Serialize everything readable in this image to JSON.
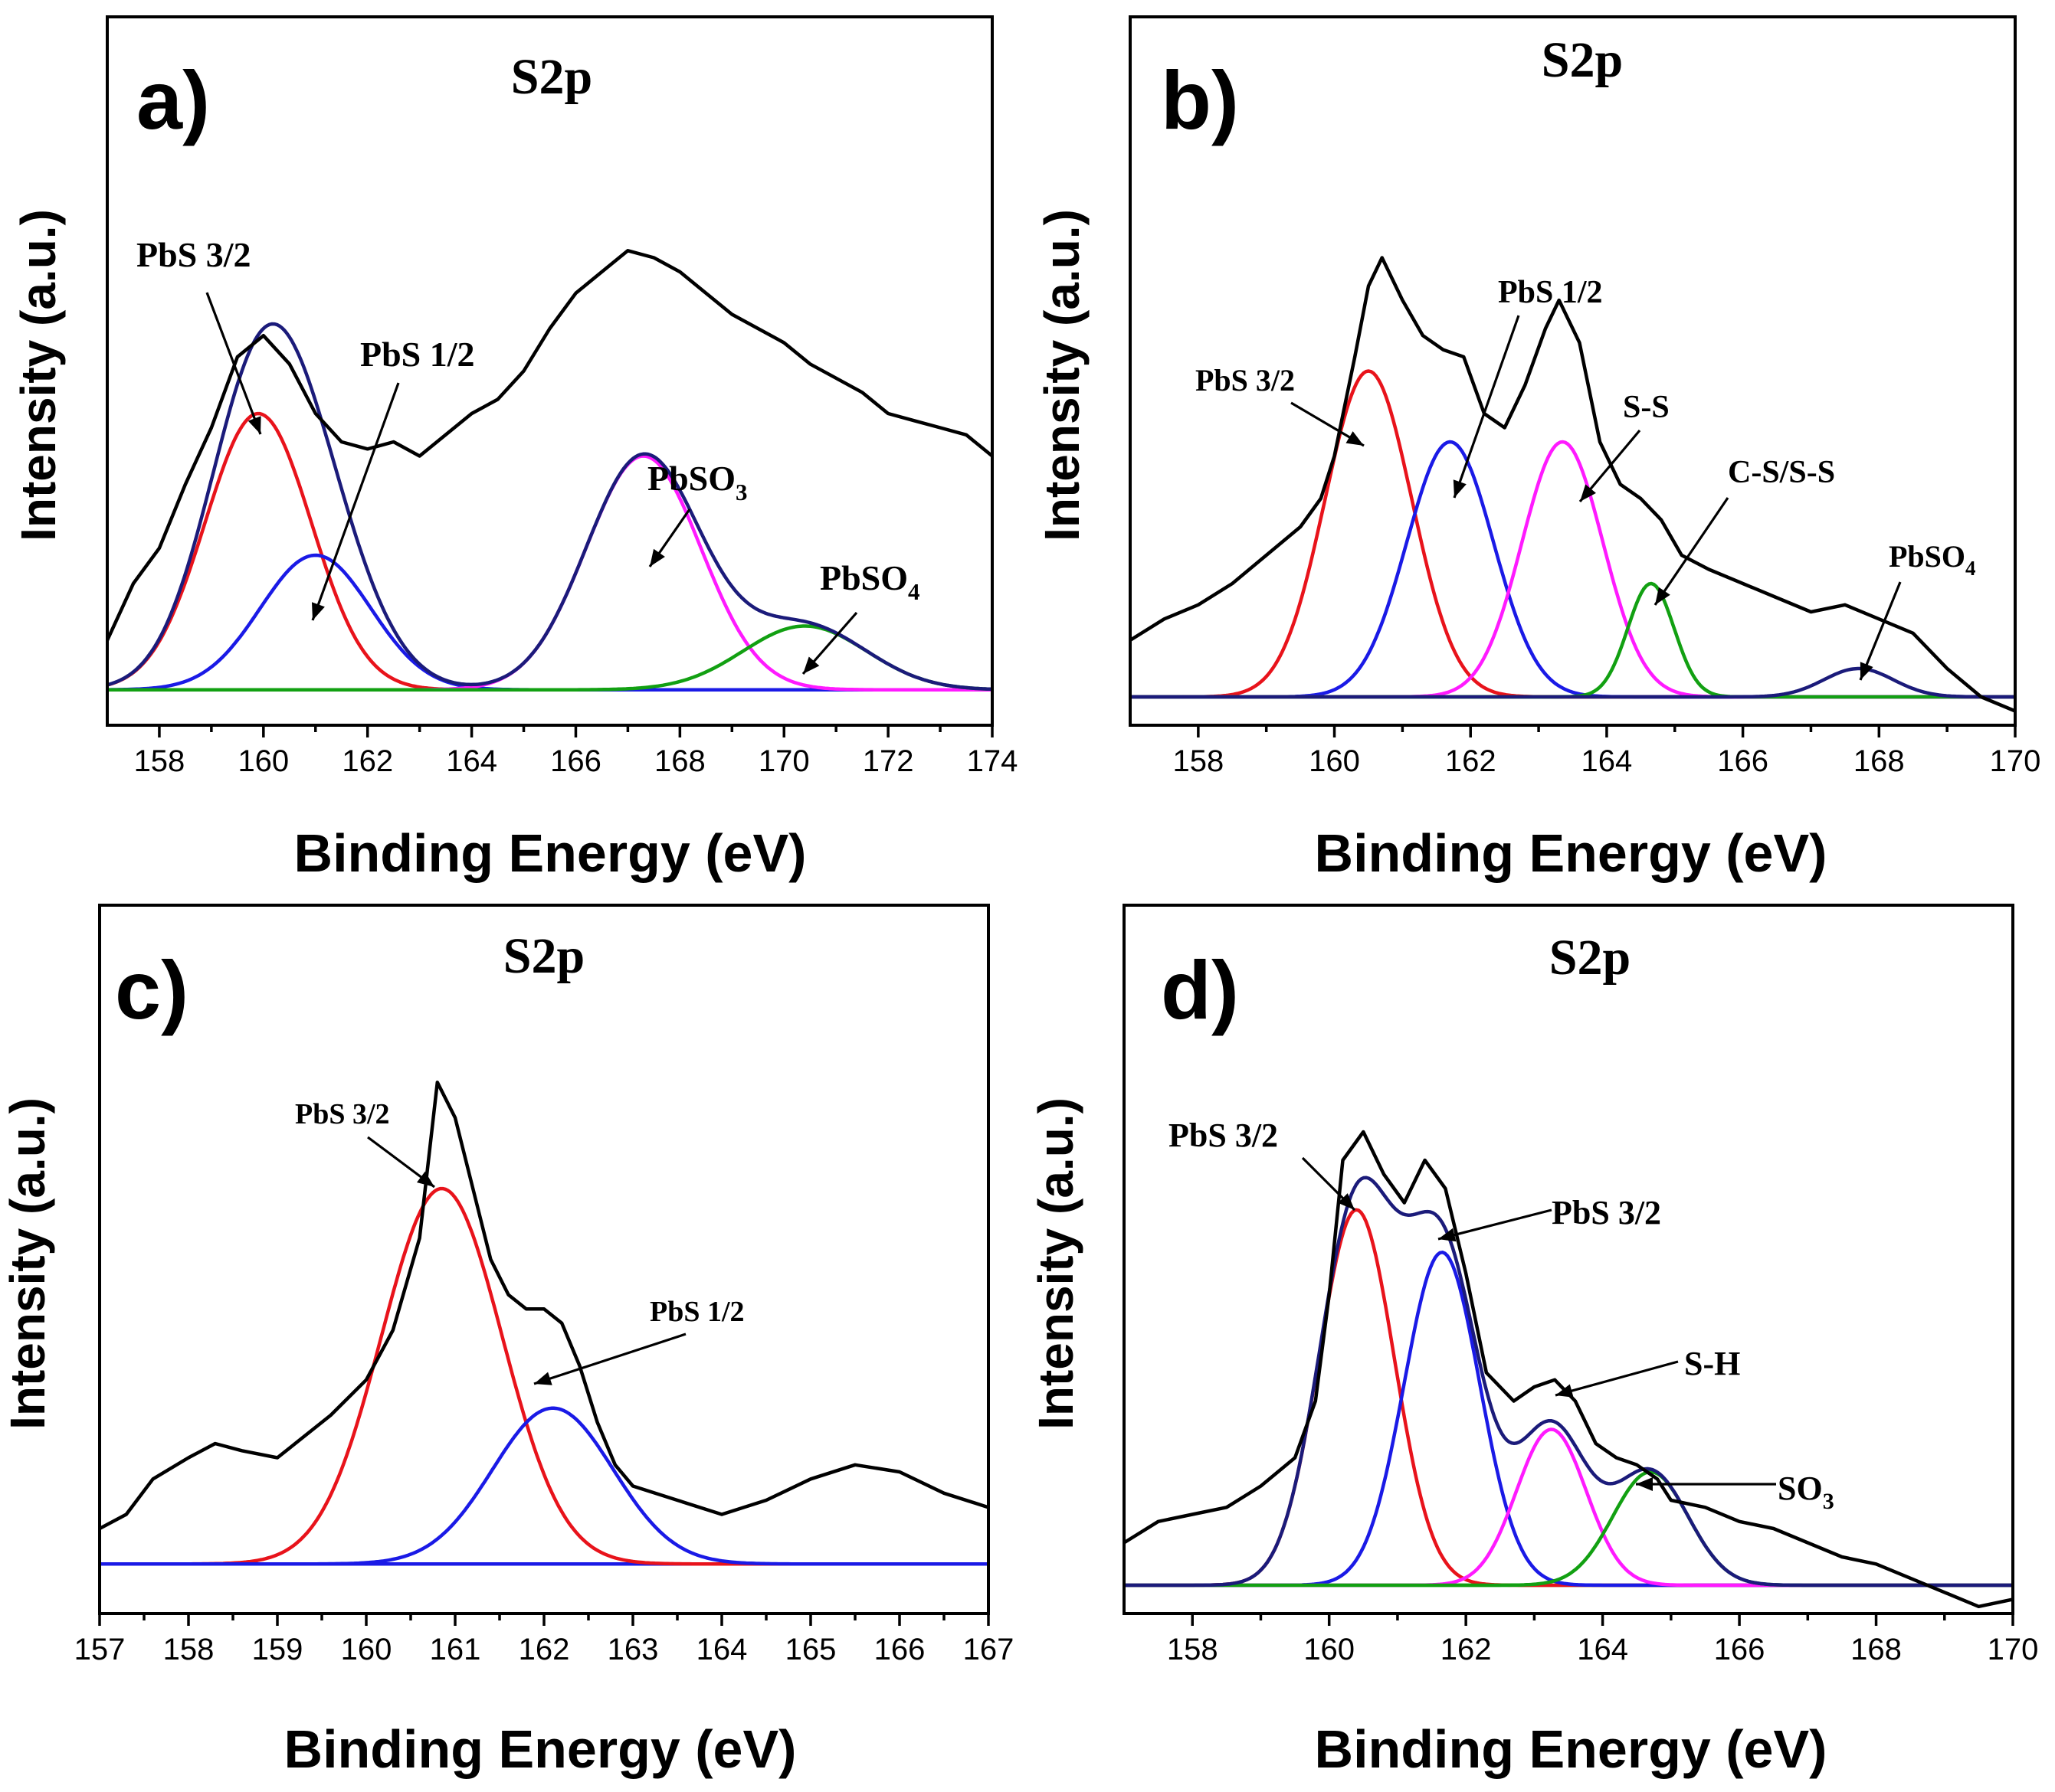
{
  "figure": "XPS S2p spectra, four panels",
  "chart_data": [
    {
      "type": "line",
      "panel_label": "a)",
      "title": "S2p",
      "xlabel": "Binding Energy (eV)",
      "ylabel": "Intensity (a.u.)",
      "xlim": [
        157,
        174
      ],
      "xticks": [
        158,
        160,
        162,
        164,
        166,
        168,
        170,
        172,
        174
      ],
      "ylim": [
        0,
        100
      ],
      "baseline": 5,
      "series": [
        {
          "name": "Raw data",
          "color": "#000000",
          "kind": "raw",
          "points": [
            [
              157,
              12
            ],
            [
              157.5,
              20
            ],
            [
              158,
              25
            ],
            [
              158.5,
              34
            ],
            [
              159,
              42
            ],
            [
              159.5,
              52
            ],
            [
              160,
              55
            ],
            [
              160.5,
              51
            ],
            [
              161,
              44
            ],
            [
              161.5,
              40
            ],
            [
              162,
              39
            ],
            [
              162.5,
              40
            ],
            [
              163,
              38
            ],
            [
              163.5,
              41
            ],
            [
              164,
              44
            ],
            [
              164.5,
              46
            ],
            [
              165,
              50
            ],
            [
              165.5,
              56
            ],
            [
              166,
              61
            ],
            [
              166.5,
              64
            ],
            [
              167,
              67
            ],
            [
              167.5,
              66
            ],
            [
              168,
              64
            ],
            [
              168.5,
              61
            ],
            [
              169,
              58
            ],
            [
              169.5,
              56
            ],
            [
              170,
              54
            ],
            [
              170.5,
              51
            ],
            [
              171,
              49
            ],
            [
              171.5,
              47
            ],
            [
              172,
              44
            ],
            [
              172.5,
              43
            ],
            [
              173,
              42
            ],
            [
              173.5,
              41
            ],
            [
              174,
              38
            ]
          ]
        },
        {
          "name": "PbS 3/2",
          "color": "#e8131b",
          "kind": "peak",
          "center": 159.9,
          "fwhm": 2.4,
          "height": 39
        },
        {
          "name": "PbS 1/2",
          "color": "#1a1ae6",
          "kind": "peak",
          "center": 161.0,
          "fwhm": 2.5,
          "height": 19
        },
        {
          "name": "PbSO3",
          "color": "#ff1aff",
          "kind": "peak",
          "center": 167.3,
          "fwhm": 2.6,
          "height": 33
        },
        {
          "name": "PbSO4",
          "color": "#12a012",
          "kind": "peak",
          "center": 170.4,
          "fwhm": 2.8,
          "height": 9
        },
        {
          "name": "Baseline",
          "color": "#12a012",
          "kind": "baseline"
        },
        {
          "name": "Envelope",
          "color": "#1b1b7a",
          "kind": "envelope"
        }
      ],
      "annotations": [
        {
          "text": "PbS 3/2",
          "sub": ""
        },
        {
          "text": "PbS 1/2",
          "sub": ""
        },
        {
          "text": "PbSO",
          "sub": "3"
        },
        {
          "text": "PbSO",
          "sub": "4"
        }
      ]
    },
    {
      "type": "line",
      "panel_label": "b)",
      "title": "S2p",
      "xlabel": "Binding Energy (eV)",
      "ylabel": "Intensity (a.u.)",
      "xlim": [
        157,
        170
      ],
      "xticks": [
        158,
        160,
        162,
        164,
        166,
        168,
        170
      ],
      "ylim": [
        0,
        100
      ],
      "baseline": 4,
      "series": [
        {
          "name": "Raw data",
          "color": "#000000",
          "kind": "raw",
          "points": [
            [
              157,
              12
            ],
            [
              157.5,
              15
            ],
            [
              158,
              17
            ],
            [
              158.5,
              20
            ],
            [
              159,
              24
            ],
            [
              159.5,
              28
            ],
            [
              159.8,
              32
            ],
            [
              160,
              38
            ],
            [
              160.3,
              52
            ],
            [
              160.5,
              62
            ],
            [
              160.7,
              66
            ],
            [
              161,
              60
            ],
            [
              161.3,
              55
            ],
            [
              161.6,
              53
            ],
            [
              161.9,
              52
            ],
            [
              162.2,
              44
            ],
            [
              162.5,
              42
            ],
            [
              162.8,
              48
            ],
            [
              163.1,
              56
            ],
            [
              163.3,
              60
            ],
            [
              163.6,
              54
            ],
            [
              163.9,
              40
            ],
            [
              164.2,
              34
            ],
            [
              164.5,
              32
            ],
            [
              164.8,
              29
            ],
            [
              165.1,
              24
            ],
            [
              165.5,
              22
            ],
            [
              166,
              20
            ],
            [
              166.5,
              18
            ],
            [
              167,
              16
            ],
            [
              167.5,
              17
            ],
            [
              168,
              15
            ],
            [
              168.5,
              13
            ],
            [
              169,
              8
            ],
            [
              169.5,
              4
            ],
            [
              170,
              2
            ]
          ]
        },
        {
          "name": "PbS 3/2",
          "color": "#e8131b",
          "kind": "peak",
          "center": 160.5,
          "fwhm": 1.5,
          "height": 46
        },
        {
          "name": "PbS 1/2",
          "color": "#1a1ae6",
          "kind": "peak",
          "center": 161.7,
          "fwhm": 1.5,
          "height": 36
        },
        {
          "name": "S-S",
          "color": "#ff1aff",
          "kind": "peak",
          "center": 163.35,
          "fwhm": 1.4,
          "height": 36
        },
        {
          "name": "C-S/S-S",
          "color": "#12a012",
          "kind": "peak",
          "center": 164.65,
          "fwhm": 0.8,
          "height": 16
        },
        {
          "name": "PbSO4",
          "color": "#1b1b7a",
          "kind": "peak",
          "center": 167.7,
          "fwhm": 1.2,
          "height": 4
        },
        {
          "name": "Baseline",
          "color": "#12a012",
          "kind": "baseline"
        }
      ],
      "annotations": [
        {
          "text": "PbS 3/2",
          "sub": ""
        },
        {
          "text": "PbS 1/2",
          "sub": ""
        },
        {
          "text": "S-S",
          "sub": ""
        },
        {
          "text": "C-S/S-S",
          "sub": ""
        },
        {
          "text": "PbSO",
          "sub": "4"
        }
      ]
    },
    {
      "type": "line",
      "panel_label": "c)",
      "title": "S2p",
      "xlabel": "Binding Energy (eV)",
      "ylabel": "Intensity (a.u.)",
      "xlim": [
        157,
        167
      ],
      "xticks": [
        157,
        158,
        159,
        160,
        161,
        162,
        163,
        164,
        165,
        166,
        167
      ],
      "ylim": [
        0,
        100
      ],
      "baseline": 7,
      "series": [
        {
          "name": "Raw data",
          "color": "#000000",
          "kind": "raw",
          "points": [
            [
              157,
              12
            ],
            [
              157.3,
              14
            ],
            [
              157.6,
              19
            ],
            [
              158,
              22
            ],
            [
              158.3,
              24
            ],
            [
              158.6,
              23
            ],
            [
              159,
              22
            ],
            [
              159.3,
              25
            ],
            [
              159.6,
              28
            ],
            [
              160,
              33
            ],
            [
              160.3,
              40
            ],
            [
              160.6,
              53
            ],
            [
              160.8,
              75
            ],
            [
              161,
              70
            ],
            [
              161.2,
              60
            ],
            [
              161.4,
              50
            ],
            [
              161.6,
              45
            ],
            [
              161.8,
              43
            ],
            [
              162,
              43
            ],
            [
              162.2,
              41
            ],
            [
              162.4,
              35
            ],
            [
              162.6,
              27
            ],
            [
              162.8,
              21
            ],
            [
              163,
              18
            ],
            [
              163.5,
              16
            ],
            [
              164,
              14
            ],
            [
              164.5,
              16
            ],
            [
              165,
              19
            ],
            [
              165.5,
              21
            ],
            [
              166,
              20
            ],
            [
              166.5,
              17
            ],
            [
              167,
              15
            ]
          ]
        },
        {
          "name": "PbS 3/2",
          "color": "#e8131b",
          "kind": "peak",
          "center": 160.85,
          "fwhm": 1.6,
          "height": 53
        },
        {
          "name": "PbS 1/2",
          "color": "#1a1ae6",
          "kind": "peak",
          "center": 162.1,
          "fwhm": 1.6,
          "height": 22
        },
        {
          "name": "Baseline",
          "color": "#1a1ae6",
          "kind": "baseline"
        }
      ],
      "annotations": [
        {
          "text": "PbS 3/2",
          "sub": ""
        },
        {
          "text": "PbS 1/2",
          "sub": ""
        }
      ]
    },
    {
      "type": "line",
      "panel_label": "d)",
      "title": "S2p",
      "xlabel": "Binding Energy (eV)",
      "ylabel": "Intensity (a.u.)",
      "xlim": [
        157,
        170
      ],
      "xticks": [
        158,
        160,
        162,
        164,
        166,
        168,
        170
      ],
      "ylim": [
        0,
        100
      ],
      "baseline": 4,
      "series": [
        {
          "name": "Raw data",
          "color": "#000000",
          "kind": "raw",
          "points": [
            [
              157,
              10
            ],
            [
              157.5,
              13
            ],
            [
              158,
              14
            ],
            [
              158.5,
              15
            ],
            [
              159,
              18
            ],
            [
              159.5,
              22
            ],
            [
              159.8,
              30
            ],
            [
              160,
              45
            ],
            [
              160.2,
              64
            ],
            [
              160.5,
              68
            ],
            [
              160.8,
              62
            ],
            [
              161.1,
              58
            ],
            [
              161.4,
              64
            ],
            [
              161.7,
              60
            ],
            [
              162,
              48
            ],
            [
              162.3,
              34
            ],
            [
              162.7,
              30
            ],
            [
              163,
              32
            ],
            [
              163.3,
              33
            ],
            [
              163.6,
              30
            ],
            [
              163.9,
              24
            ],
            [
              164.2,
              22
            ],
            [
              164.5,
              21
            ],
            [
              164.8,
              19
            ],
            [
              165,
              16
            ],
            [
              165.5,
              15
            ],
            [
              166,
              13
            ],
            [
              166.5,
              12
            ],
            [
              167,
              10
            ],
            [
              167.5,
              8
            ],
            [
              168,
              7
            ],
            [
              168.5,
              5
            ],
            [
              169,
              3
            ],
            [
              169.5,
              1
            ],
            [
              170,
              2
            ]
          ]
        },
        {
          "name": "PbS 3/2",
          "color": "#e8131b",
          "kind": "peak",
          "center": 160.4,
          "fwhm": 1.3,
          "height": 53
        },
        {
          "name": "PbS 3/2 (2)",
          "color": "#1a1ae6",
          "kind": "peak",
          "center": 161.65,
          "fwhm": 1.3,
          "height": 47
        },
        {
          "name": "S-H",
          "color": "#ff1aff",
          "kind": "peak",
          "center": 163.25,
          "fwhm": 1.2,
          "height": 22
        },
        {
          "name": "SO3",
          "color": "#12a012",
          "kind": "peak",
          "center": 164.7,
          "fwhm": 1.3,
          "height": 16
        },
        {
          "name": "Baseline",
          "color": "#12a012",
          "kind": "baseline"
        },
        {
          "name": "Envelope",
          "color": "#1b1b7a",
          "kind": "envelope"
        }
      ],
      "annotations": [
        {
          "text": "PbS 3/2",
          "sub": ""
        },
        {
          "text": "PbS 3/2",
          "sub": ""
        },
        {
          "text": "S-H",
          "sub": ""
        },
        {
          "text": "SO",
          "sub": "3"
        }
      ]
    }
  ]
}
